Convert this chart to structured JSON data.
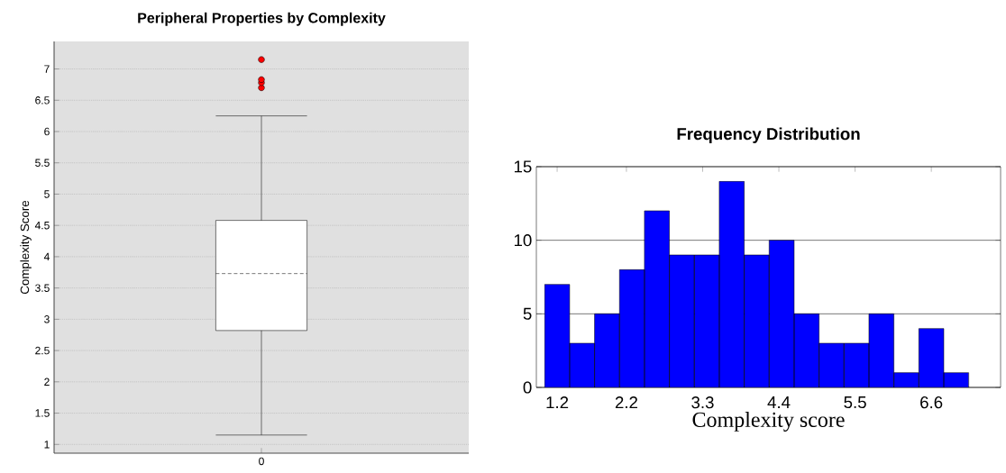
{
  "chart_data": [
    {
      "type": "box",
      "title": "Peripheral Properties by Complexity",
      "ylabel": "Complexity Score",
      "categories": [
        "0"
      ],
      "boxes": [
        {
          "low": 1.15,
          "q1": 2.82,
          "median": 3.73,
          "q3": 4.58,
          "high": 6.25,
          "outliers": [
            6.7,
            6.78,
            6.83,
            7.15
          ]
        }
      ],
      "color": "#ffffff",
      "ylim": [
        0.86,
        7.44
      ],
      "yticks": [
        1,
        1.5,
        2,
        2.5,
        3,
        3.5,
        4,
        4.5,
        5,
        5.5,
        6,
        6.5,
        7
      ],
      "grid": "y"
    },
    {
      "type": "histogram",
      "title": "Frequency Distribution",
      "xlabel": "Complexity score",
      "bins": [
        1.02,
        1.38,
        1.74,
        2.1,
        2.46,
        2.82,
        3.18,
        3.54,
        3.9,
        4.26,
        4.62,
        4.98,
        5.34,
        5.7,
        6.06,
        6.42,
        6.78,
        7.14
      ],
      "values": [
        7,
        3,
        5,
        8,
        12,
        9,
        9,
        14,
        9,
        10,
        5,
        3,
        3,
        5,
        1,
        4,
        1
      ],
      "color": "#0000ff",
      "xlim": [
        0.9,
        7.6
      ],
      "xticks": [
        1.2,
        2.2,
        3.3,
        4.4,
        5.5,
        6.6
      ],
      "ylim": [
        0,
        15
      ],
      "yticks": [
        0,
        5,
        10,
        15
      ],
      "grid": "y"
    }
  ]
}
